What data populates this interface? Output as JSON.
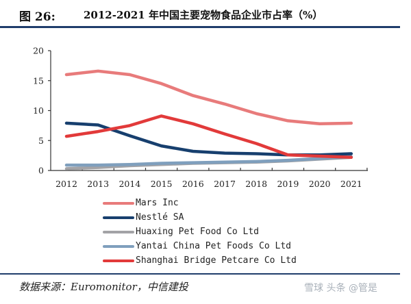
{
  "header": {
    "figure_number": "图 26:",
    "title": "2012-2021 年中国主要宠物食品企业市占率（%）"
  },
  "footer": {
    "source": "数据来源：Euromonitor，中信建投",
    "watermark": "雪球 头条 @管是"
  },
  "chart_data": {
    "type": "line",
    "title": "2012-2021 年中国主要宠物食品企业市占率（%）",
    "xlabel": "",
    "ylabel": "",
    "x": [
      "2012",
      "2013",
      "2014",
      "2015",
      "2016",
      "2017",
      "2018",
      "2019",
      "2020",
      "2021"
    ],
    "ylim": [
      0,
      20
    ],
    "yticks": [
      "0",
      "5",
      "10",
      "15",
      "20"
    ],
    "grid": false,
    "legend_position": "bottom",
    "series": [
      {
        "name": "Mars Inc",
        "color": "#e87b7b",
        "values": [
          16.0,
          16.6,
          16.0,
          14.5,
          12.5,
          11.1,
          9.5,
          8.3,
          7.8,
          7.9
        ]
      },
      {
        "name": "Nestlé SA",
        "color": "#173f6e",
        "values": [
          7.9,
          7.6,
          5.8,
          4.1,
          3.2,
          2.9,
          2.8,
          2.6,
          2.6,
          2.8
        ]
      },
      {
        "name": "Huaxing Pet Food Co Ltd",
        "color": "#a3a3a6",
        "values": [
          0.3,
          0.5,
          0.8,
          1.0,
          1.2,
          1.3,
          1.4,
          1.6,
          1.9,
          2.2
        ]
      },
      {
        "name": "Yantai China Pet Foods Co Ltd",
        "color": "#7f9fbd",
        "values": [
          0.9,
          0.9,
          1.0,
          1.2,
          1.3,
          1.4,
          1.5,
          1.7,
          2.0,
          2.3
        ]
      },
      {
        "name": "Shanghai Bridge Petcare Co Ltd",
        "color": "#e23a3a",
        "values": [
          5.7,
          6.5,
          7.5,
          9.1,
          7.8,
          6.1,
          4.5,
          2.6,
          2.4,
          2.2
        ]
      }
    ]
  }
}
